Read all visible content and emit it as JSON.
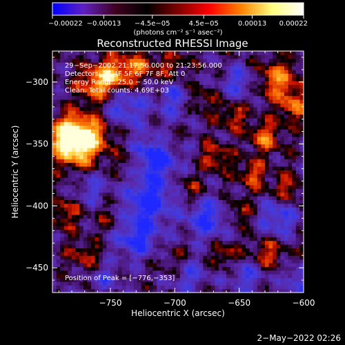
{
  "chart_data": {
    "type": "heatmap",
    "title": "Reconstructed RHESSI Image",
    "xlabel": "Heliocentric X (arcsec)",
    "ylabel": "Heliocentric Y (arcsec)",
    "xlim": [
      -795,
      -600
    ],
    "ylim": [
      -470,
      -275
    ],
    "x_ticks": [
      -750,
      -700,
      -650,
      -600
    ],
    "x_tick_labels": [
      "−750",
      "−700",
      "−650",
      "−600"
    ],
    "y_ticks": [
      -300,
      -350,
      -400,
      -450
    ],
    "y_tick_labels": [
      "−300",
      "−350",
      "−400",
      "−450"
    ],
    "colorbar": {
      "range": [
        -0.00022,
        0.00022
      ],
      "ticks": [
        -0.00022,
        -0.00013,
        -4.5e-05,
        4.5e-05,
        0.00013,
        0.00022
      ],
      "tick_labels": [
        "−0.00022",
        "−0.00013",
        "−4.5e−05",
        "4.5e−05",
        "0.00013",
        "0.00022"
      ],
      "label": "(photons cm⁻² s⁻¹ asec⁻²)",
      "colors": [
        "#0000ff",
        "#6020c0",
        "#400020",
        "#000000",
        "#800000",
        "#ff0000",
        "#ff8000",
        "#ffff80",
        "#ffffff"
      ]
    },
    "annotations": [
      "29−Sep−2002 21:17:56.000 to 21:23:56.000",
      "Detectors: 3F 4F 5F 6F 7F 8F, Att 0",
      "Energy Range: 25.0 − 50.0 keV",
      "Clean.   Total counts: 4.69E+03"
    ],
    "peak_label": "Position of Peak = [−776,−353]",
    "peak_position": [
      -776,
      -353
    ],
    "blobs": [
      {
        "x": -778,
        "y": -352,
        "v": 1.0,
        "s": 12
      },
      {
        "x": -765,
        "y": -342,
        "v": 0.7,
        "s": 12
      },
      {
        "x": -785,
        "y": -340,
        "v": 0.75,
        "s": 10
      },
      {
        "x": -760,
        "y": -302,
        "v": 0.8,
        "s": 11
      },
      {
        "x": -745,
        "y": -292,
        "v": 0.7,
        "s": 10
      },
      {
        "x": -725,
        "y": -287,
        "v": 0.55,
        "s": 9
      },
      {
        "x": -700,
        "y": -287,
        "v": 0.4,
        "s": 8
      },
      {
        "x": -620,
        "y": -298,
        "v": 0.75,
        "s": 11
      },
      {
        "x": -607,
        "y": -320,
        "v": 0.6,
        "s": 9
      },
      {
        "x": -630,
        "y": -345,
        "v": 0.65,
        "s": 9
      },
      {
        "x": -655,
        "y": -327,
        "v": 0.5,
        "s": 8
      },
      {
        "x": -680,
        "y": -315,
        "v": 0.4,
        "s": 8
      },
      {
        "x": -668,
        "y": -360,
        "v": 0.55,
        "s": 8
      },
      {
        "x": -640,
        "y": -375,
        "v": 0.6,
        "s": 8
      },
      {
        "x": -613,
        "y": -385,
        "v": 0.5,
        "s": 8
      },
      {
        "x": -650,
        "y": -405,
        "v": 0.45,
        "s": 7
      },
      {
        "x": -688,
        "y": -385,
        "v": 0.4,
        "s": 7
      },
      {
        "x": -705,
        "y": -348,
        "v": 0.3,
        "s": 7
      },
      {
        "x": -628,
        "y": -438,
        "v": 0.55,
        "s": 9
      },
      {
        "x": -660,
        "y": -440,
        "v": 0.45,
        "s": 8
      },
      {
        "x": -700,
        "y": -445,
        "v": 0.35,
        "s": 8
      },
      {
        "x": -785,
        "y": -405,
        "v": 0.5,
        "s": 9
      },
      {
        "x": -770,
        "y": -440,
        "v": 0.45,
        "s": 9
      },
      {
        "x": -750,
        "y": -410,
        "v": 0.3,
        "s": 8
      },
      {
        "x": -735,
        "y": -365,
        "v": 0.25,
        "s": 8
      },
      {
        "x": -740,
        "y": -320,
        "v": -0.6,
        "s": 12
      },
      {
        "x": -715,
        "y": -360,
        "v": -0.9,
        "s": 12
      },
      {
        "x": -720,
        "y": -395,
        "v": -0.8,
        "s": 13
      },
      {
        "x": -675,
        "y": -410,
        "v": -0.7,
        "s": 11
      },
      {
        "x": -730,
        "y": -425,
        "v": -0.7,
        "s": 12
      },
      {
        "x": -700,
        "y": -315,
        "v": -0.5,
        "s": 10
      },
      {
        "x": -650,
        "y": -300,
        "v": -0.5,
        "s": 9
      },
      {
        "x": -620,
        "y": -410,
        "v": -0.6,
        "s": 10
      },
      {
        "x": -645,
        "y": -455,
        "v": -0.5,
        "s": 10
      },
      {
        "x": -765,
        "y": -385,
        "v": -0.4,
        "s": 9
      },
      {
        "x": -690,
        "y": -455,
        "v": -0.5,
        "s": 10
      },
      {
        "x": -755,
        "y": -458,
        "v": -0.4,
        "s": 9
      },
      {
        "x": -605,
        "y": -460,
        "v": -0.5,
        "s": 8
      }
    ]
  },
  "footer": {
    "timestamp": "2−May−2022 02:26"
  }
}
